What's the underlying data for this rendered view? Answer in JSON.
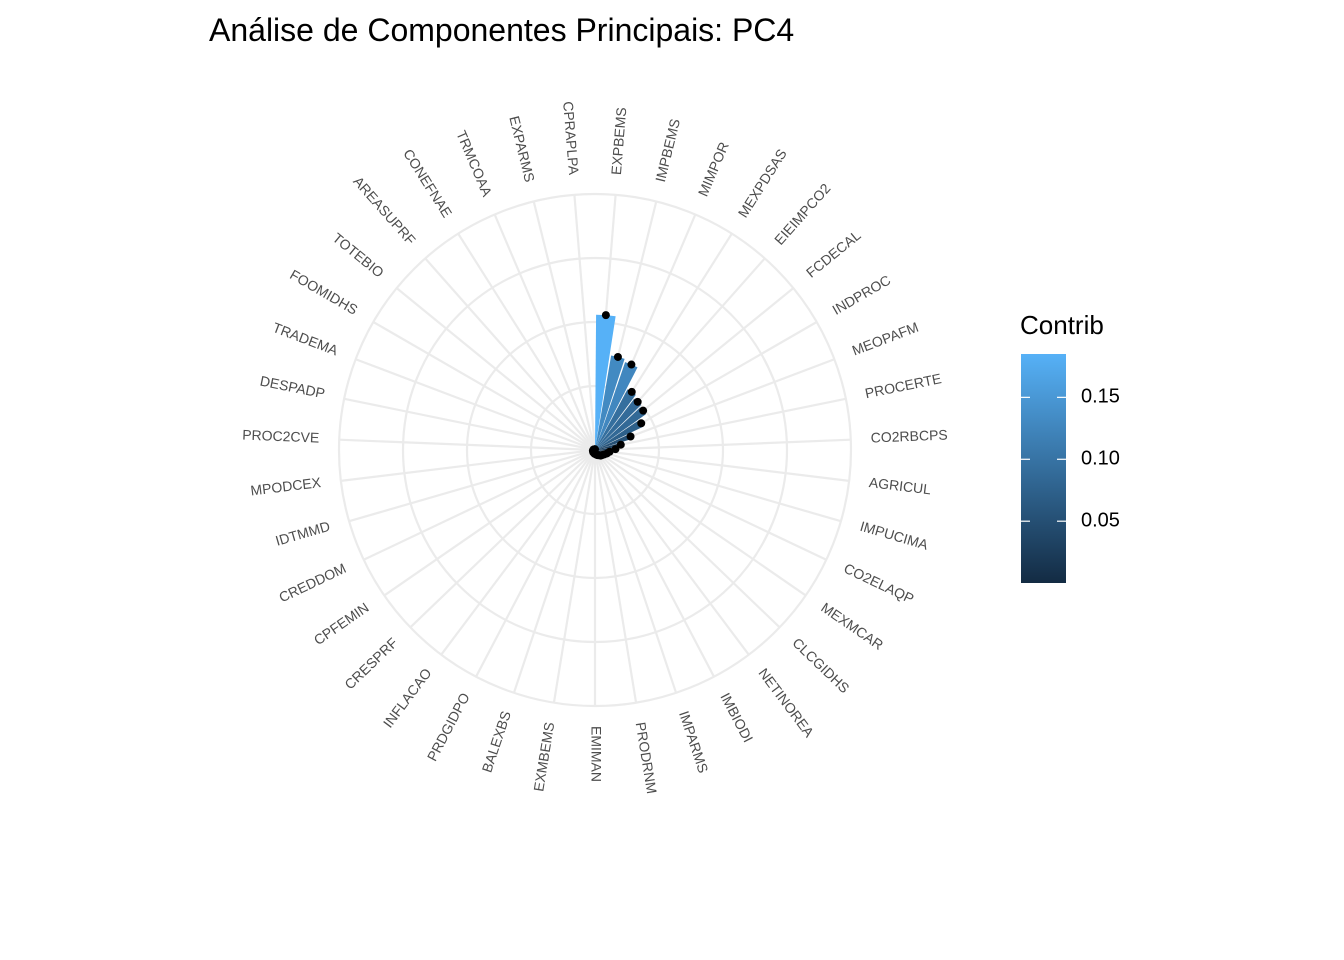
{
  "chart_data": {
    "type": "bar",
    "coord": "polar",
    "title": "Análise de Componentes Principais: PC4",
    "categories": [
      "EXPBEMS",
      "IMPBEMS",
      "MIMPOR",
      "MEXPDSAS",
      "EIEIMPCO2",
      "FCDECAL",
      "INDPROC",
      "MEOPAFM",
      "PROCERTE",
      "CO2RBCPS",
      "AGRICUL",
      "IMPUCIMA",
      "CO2ELAQP",
      "MEXMCAR",
      "CLCGIDHS",
      "NETINOREA",
      "IMBIODI",
      "IMPARMS",
      "PRODRNM",
      "EMIMAN",
      "EXMBEMS",
      "BALEXBS",
      "PRDGIDPO",
      "INFLACAO",
      "CRESPRF",
      "CPFEMIN",
      "CREDDOM",
      "IDTMMD",
      "MPODCEX",
      "PROC2CVE",
      "DESPADP",
      "TRADEMA",
      "FOOMIDHS",
      "TOTEBIO",
      "AREASUPRF",
      "CONEFNAE",
      "TRMCOAA",
      "EXPARMS",
      "CPRAPLPA"
    ],
    "values": [
      0.185,
      0.131,
      0.127,
      0.094,
      0.088,
      0.085,
      0.073,
      0.052,
      0.036,
      0.028,
      0.02,
      0.017,
      0.014,
      0.012,
      0.011,
      0.009,
      0.008,
      0.007,
      0.006,
      0.005,
      0.005,
      0.004,
      0.004,
      0.004,
      0.003,
      0.003,
      0.003,
      0.003,
      0.002,
      0.002,
      0.002,
      0.002,
      0.001,
      0.001,
      0.001,
      0.001,
      0.001,
      0.001,
      0.001
    ],
    "ylim": [
      0,
      0.35
    ],
    "grid": true,
    "fill_scale": {
      "name": "Contrib",
      "low": "#132B43",
      "high": "#56B1F7",
      "range": [
        0.0001,
        0.185
      ],
      "breaks": [
        0.05,
        0.1,
        0.15
      ],
      "break_labels": [
        "0.05",
        "0.10",
        "0.15"
      ]
    },
    "legend_position": "right",
    "point_color": "#000000",
    "grid_color": "#ebebeb"
  }
}
